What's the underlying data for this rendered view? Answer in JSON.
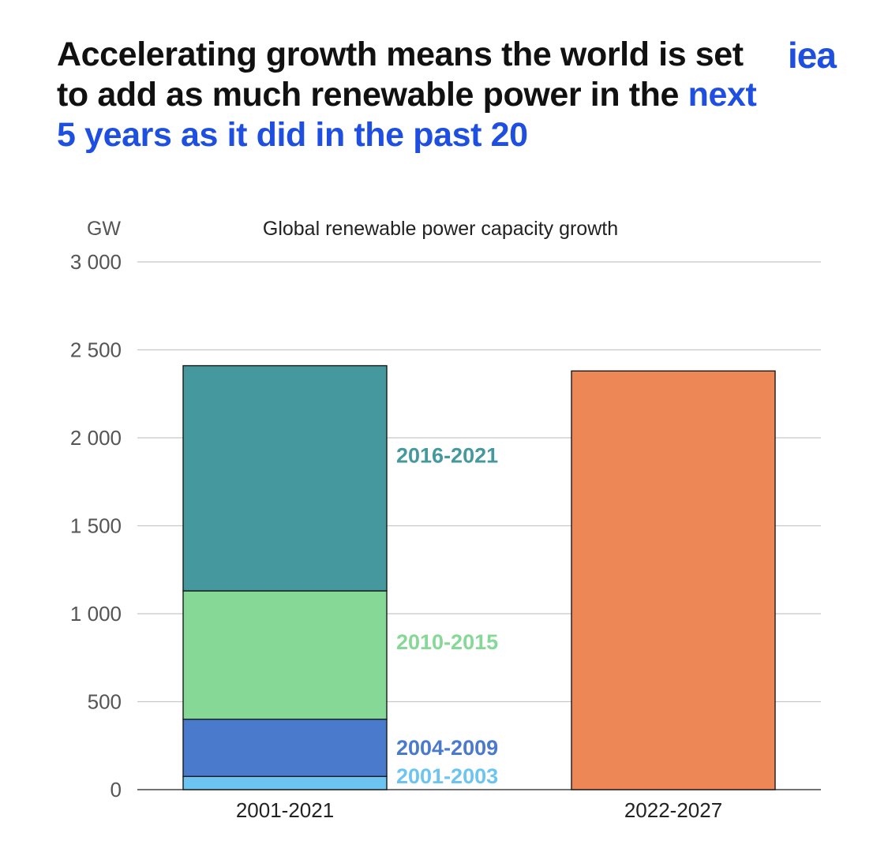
{
  "header": {
    "headline_part1": "Accelerating growth means the world is set to add as much renewable power in the",
    "headline_highlight": "next 5 years as it did in the past 20",
    "logo_text": "iea"
  },
  "colors": {
    "highlight": "#1f4fe0",
    "segment_2001_2003": "#6cc4f0",
    "segment_2004_2009": "#4a7acb",
    "segment_2010_2015": "#85d896",
    "segment_2016_2021": "#45999e",
    "forecast": "#ed8755"
  },
  "chart_data": {
    "type": "bar",
    "stacked": true,
    "title": "Global renewable power capacity growth",
    "ylabel": "GW",
    "ylim": [
      0,
      3000
    ],
    "yticks": [
      0,
      500,
      1000,
      1500,
      2000,
      2500,
      3000
    ],
    "ytick_labels": [
      "0",
      "500",
      "1 000",
      "1 500",
      "2 000",
      "2 500",
      "3 000"
    ],
    "grid": true,
    "categories": [
      "2001-2021",
      "2022-2027"
    ],
    "series": [
      {
        "name": "2001-2003",
        "color": "#6cc4f0",
        "values": [
          75,
          0
        ]
      },
      {
        "name": "2004-2009",
        "color": "#4a7acb",
        "values": [
          325,
          0
        ]
      },
      {
        "name": "2010-2015",
        "color": "#85d896",
        "values": [
          730,
          0
        ]
      },
      {
        "name": "2016-2021",
        "color": "#45999e",
        "values": [
          1280,
          0
        ]
      },
      {
        "name": "",
        "color": "#ed8755",
        "values": [
          0,
          2380
        ]
      }
    ],
    "labels": [
      {
        "text": "2016-2021",
        "color": "#45999e",
        "series": 3
      },
      {
        "text": "2010-2015",
        "color": "#85d896",
        "series": 2
      },
      {
        "text": "2004-2009",
        "color": "#4a7acb",
        "series": 1
      },
      {
        "text": "2001-2003",
        "color": "#6cc4f0",
        "series": 0
      }
    ]
  }
}
